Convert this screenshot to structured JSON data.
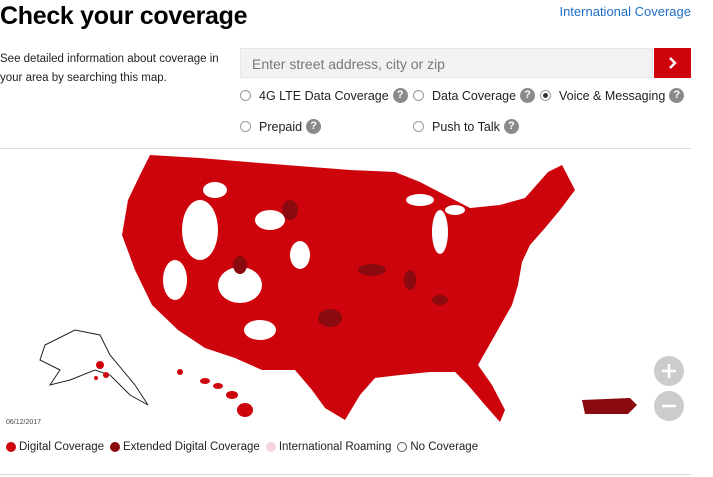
{
  "header": {
    "title": "Check your coverage",
    "link": "International Coverage"
  },
  "description": "See detailed information about coverage in your area by searching this map.",
  "search": {
    "placeholder": "Enter street address, city or zip"
  },
  "options": [
    {
      "label": "4G LTE Data Coverage",
      "selected": false
    },
    {
      "label": "Data Coverage",
      "selected": false
    },
    {
      "label": "Voice & Messaging",
      "selected": true
    },
    {
      "label": "Prepaid",
      "selected": false
    },
    {
      "label": "Push to Talk",
      "selected": false
    }
  ],
  "map": {
    "date": "06/12/2017"
  },
  "legend": [
    {
      "label": "Digital Coverage",
      "color": "#cd040b"
    },
    {
      "label": "Extended Digital Coverage",
      "color": "#8b0a10"
    },
    {
      "label": "International Roaming",
      "color": "#f6d6de"
    },
    {
      "label": "No Coverage",
      "color": "#ffffff"
    }
  ]
}
